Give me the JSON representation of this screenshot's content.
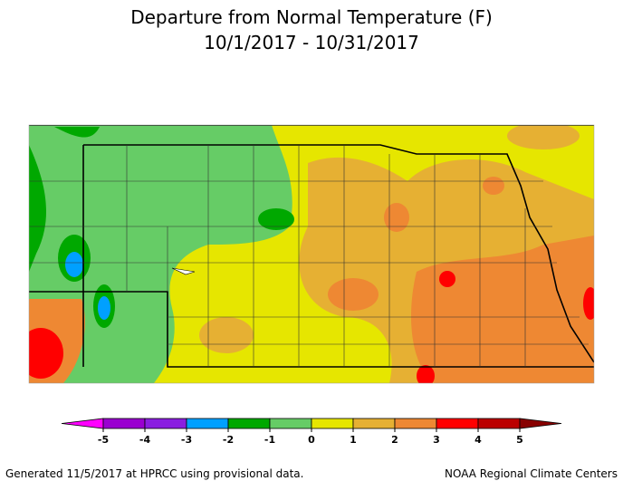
{
  "title": [
    "Departure from Normal Temperature (F)",
    "10/1/2017 - 10/31/2017"
  ],
  "colorbar": {
    "ticks": [
      -5,
      -4,
      -3,
      -2,
      -1,
      0,
      1,
      2,
      3,
      4,
      5
    ],
    "colors": [
      "#ff00ff",
      "#9a00d0",
      "#8a1ee0",
      "#00a0ff",
      "#00a800",
      "#66cc66",
      "#e6e600",
      "#e6b033",
      "#ee8833",
      "#ff0000",
      "#bb0000",
      "#880000"
    ]
  },
  "footer": {
    "left": "Generated 11/5/2017 at HPRCC using provisional data.",
    "right": "NOAA Regional Climate Centers"
  }
}
